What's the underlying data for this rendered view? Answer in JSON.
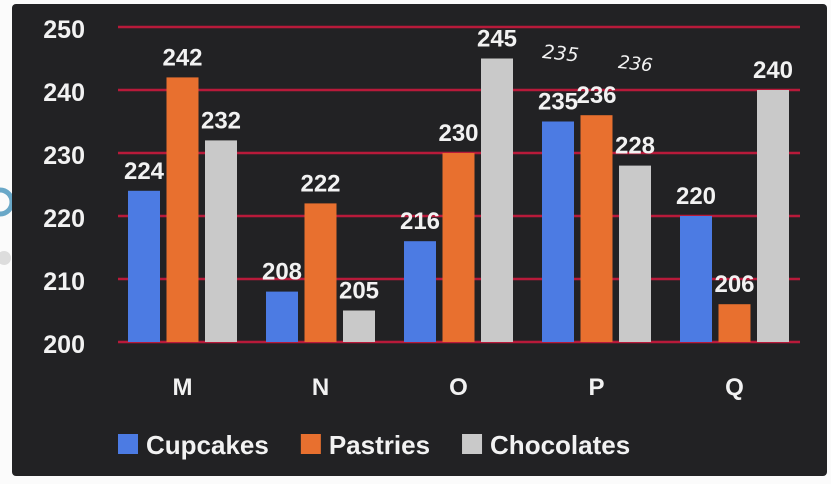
{
  "chart_data": {
    "type": "bar",
    "categories": [
      "M",
      "N",
      "O",
      "P",
      "Q"
    ],
    "series": [
      {
        "name": "Cupcakes",
        "values": [
          224,
          208,
          216,
          235,
          220
        ],
        "color": "#4c7be3"
      },
      {
        "name": "Pastries",
        "values": [
          242,
          222,
          230,
          236,
          206
        ],
        "color": "#e8702f"
      },
      {
        "name": "Chocolates",
        "values": [
          232,
          205,
          245,
          228,
          240
        ],
        "color": "#c9c9c9"
      }
    ],
    "data_labels": [
      [
        "224",
        "208",
        "216",
        "235",
        "220"
      ],
      [
        "242",
        "222",
        "230",
        "236",
        "206"
      ],
      [
        "232",
        "205",
        "245",
        "228",
        "240"
      ]
    ],
    "handwritten_notes": [
      "235",
      "236"
    ],
    "ylim": [
      200,
      250
    ],
    "yticks": [
      "250",
      "240",
      "230",
      "220",
      "210",
      "200"
    ],
    "grid": true,
    "grid_color": "#b81a3a",
    "background": "#222224",
    "text_color": "#f2f2f2",
    "legend_position": "bottom",
    "title": "",
    "xlabel": "",
    "ylabel": ""
  }
}
